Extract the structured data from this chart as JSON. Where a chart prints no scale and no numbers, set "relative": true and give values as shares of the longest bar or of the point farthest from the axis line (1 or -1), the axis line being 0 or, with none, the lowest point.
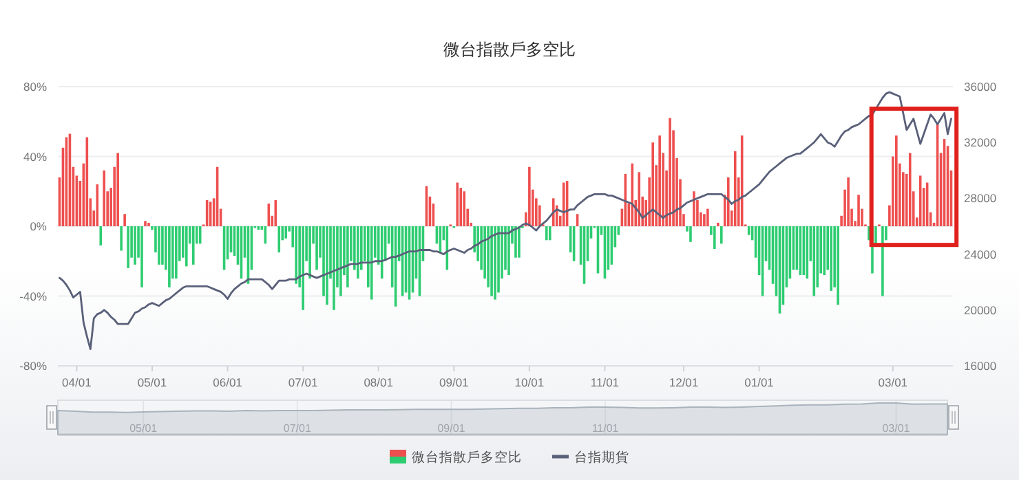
{
  "chart_data": [
    {
      "type": "bar",
      "title": "微台指散戶多空比",
      "categories": [
        null,
        null,
        null,
        null,
        null,
        "04/01",
        null,
        null,
        null,
        null,
        null,
        null,
        null,
        null,
        null,
        null,
        null,
        null,
        null,
        null,
        null,
        null,
        null,
        null,
        null,
        null,
        null,
        "05/01",
        null,
        null,
        null,
        null,
        null,
        null,
        null,
        null,
        null,
        null,
        null,
        null,
        null,
        null,
        null,
        null,
        null,
        null,
        null,
        null,
        null,
        "06/01",
        null,
        null,
        null,
        null,
        null,
        null,
        null,
        null,
        null,
        null,
        null,
        null,
        null,
        null,
        null,
        null,
        null,
        null,
        null,
        null,
        null,
        "07/01",
        null,
        null,
        null,
        null,
        null,
        null,
        null,
        null,
        null,
        null,
        null,
        null,
        null,
        null,
        null,
        null,
        null,
        null,
        null,
        null,
        null,
        "08/01",
        null,
        null,
        null,
        null,
        null,
        null,
        null,
        null,
        null,
        null,
        null,
        null,
        null,
        null,
        null,
        null,
        null,
        null,
        null,
        null,
        null,
        "09/01",
        null,
        null,
        null,
        null,
        null,
        null,
        null,
        null,
        null,
        null,
        null,
        null,
        null,
        null,
        null,
        null,
        null,
        null,
        null,
        null,
        null,
        "10/01",
        null,
        null,
        null,
        null,
        null,
        null,
        null,
        null,
        null,
        null,
        null,
        null,
        null,
        null,
        null,
        null,
        null,
        null,
        null,
        null,
        null,
        "11/01",
        null,
        null,
        null,
        null,
        null,
        null,
        null,
        null,
        null,
        null,
        null,
        null,
        null,
        null,
        null,
        null,
        null,
        null,
        null,
        null,
        null,
        null,
        "12/01",
        null,
        null,
        null,
        null,
        null,
        null,
        null,
        null,
        null,
        null,
        null,
        null,
        null,
        null,
        null,
        null,
        null,
        null,
        null,
        null,
        null,
        "01/01",
        null,
        null,
        null,
        null,
        null,
        null,
        null,
        null,
        null,
        null,
        null,
        null,
        null,
        null,
        null,
        null,
        null,
        null,
        null,
        null,
        null,
        null,
        null,
        null,
        null,
        null,
        null,
        null,
        null,
        null,
        null,
        null,
        null,
        null,
        null,
        null,
        null,
        null,
        "03/01",
        null,
        null,
        null,
        null,
        null,
        null,
        null,
        null,
        null,
        null,
        null,
        null,
        null,
        null,
        null,
        null,
        null
      ],
      "ylim": [
        -80,
        80
      ],
      "yticks": [
        {
          "value": -80,
          "label": "-80%"
        },
        {
          "value": -40,
          "label": "-40%"
        },
        {
          "value": 0,
          "label": "0%"
        },
        {
          "value": 40,
          "label": "40%"
        },
        {
          "value": 80,
          "label": "80%"
        }
      ],
      "y2lim": [
        16000,
        36000
      ],
      "y2ticks": [
        16000,
        20000,
        24000,
        28000,
        32000,
        36000
      ],
      "grid": "y",
      "legend": "bottom",
      "series": [
        {
          "name": "微台指散戶多空比",
          "values": [
            28,
            45,
            51,
            53,
            34,
            29,
            26,
            36,
            51,
            16,
            9,
            24,
            -11,
            32,
            20,
            22,
            34,
            42,
            -14,
            7,
            -24,
            -18,
            -22,
            -18,
            -35,
            3,
            2,
            -2,
            -15,
            -22,
            -22,
            -25,
            -35,
            -30,
            -30,
            -20,
            -18,
            -23,
            -10,
            -22,
            -10,
            -10,
            1,
            15,
            14,
            16,
            34,
            10,
            -25,
            -19,
            -15,
            -17,
            -22,
            -30,
            -18,
            -33,
            -25,
            -1,
            -2,
            -2,
            -10,
            13,
            6,
            15,
            -15,
            -8,
            -7,
            -3,
            -12,
            -33,
            -35,
            -48,
            -20,
            -30,
            -10,
            -25,
            -18,
            -40,
            -45,
            -30,
            -48,
            -35,
            -40,
            -28,
            -35,
            -20,
            -25,
            -30,
            -25,
            -20,
            -35,
            -42,
            -18,
            -22,
            -30,
            -20,
            -10,
            -35,
            -46,
            -20,
            -40,
            -38,
            -42,
            -38,
            -30,
            -40,
            -20,
            23,
            17,
            13,
            -10,
            -15,
            -8,
            -25,
            1,
            -1,
            25,
            22,
            20,
            10,
            2,
            -15,
            -20,
            -25,
            -30,
            -35,
            -40,
            -42,
            -38,
            -30,
            -25,
            -28,
            -10,
            -18,
            -18,
            -1,
            8,
            34,
            21,
            16,
            12,
            1,
            -8,
            -8,
            16,
            12,
            6,
            25,
            26,
            -15,
            -20,
            7,
            -22,
            -33,
            -20,
            -7,
            -1,
            -27,
            -5,
            -30,
            -25,
            -22,
            -12,
            -5,
            10,
            30,
            13,
            36,
            15,
            31,
            17,
            15,
            28,
            48,
            35,
            52,
            42,
            32,
            62,
            55,
            39,
            27,
            7,
            -3,
            -9,
            20,
            15,
            8,
            7,
            10,
            -5,
            -13,
            2,
            -10,
            18,
            28,
            9,
            43,
            28,
            52,
            1,
            -5,
            -8,
            -18,
            -28,
            -40,
            -20,
            -25,
            -33,
            -40,
            -50,
            -45,
            -35,
            -30,
            -25,
            -25,
            -28,
            -28,
            -30,
            -20,
            -40,
            -35,
            -27,
            -28,
            -25,
            -37,
            -35,
            -45,
            6,
            21,
            28,
            10,
            3,
            18,
            10,
            1,
            -8,
            -27,
            -10,
            1,
            -40,
            -8,
            12,
            40,
            52,
            36,
            31,
            30,
            42,
            20,
            5,
            29,
            22,
            25,
            8,
            2,
            59,
            42,
            50,
            46,
            32
          ],
          "colors": [
            "#ee4f4f",
            "#ee4f4f",
            "#ee4f4f",
            "#ee4f4f",
            "#ee4f4f",
            "#ee4f4f",
            "#ee4f4f",
            "#ee4f4f",
            "#ee4f4f",
            "#ee4f4f",
            "#ee4f4f",
            "#ee4f4f",
            "#2ecc71",
            "#ee4f4f",
            "#ee4f4f",
            "#ee4f4f",
            "#ee4f4f",
            "#ee4f4f",
            "#2ecc71",
            "#ee4f4f",
            "#2ecc71",
            "#2ecc71",
            "#2ecc71",
            "#2ecc71",
            "#2ecc71",
            "#ee4f4f",
            "#ee4f4f",
            "#2ecc71",
            "#2ecc71",
            "#2ecc71",
            "#2ecc71",
            "#2ecc71",
            "#2ecc71",
            "#2ecc71",
            "#2ecc71",
            "#2ecc71",
            "#2ecc71",
            "#2ecc71",
            "#2ecc71",
            "#2ecc71",
            "#2ecc71",
            "#2ecc71",
            "#ee4f4f",
            "#ee4f4f",
            "#ee4f4f",
            "#ee4f4f",
            "#ee4f4f",
            "#ee4f4f",
            "#2ecc71",
            "#2ecc71",
            "#2ecc71",
            "#2ecc71",
            "#2ecc71",
            "#2ecc71",
            "#2ecc71",
            "#2ecc71",
            "#2ecc71",
            "#2ecc71",
            "#2ecc71",
            "#2ecc71",
            "#2ecc71",
            "#ee4f4f",
            "#ee4f4f",
            "#ee4f4f",
            "#2ecc71",
            "#2ecc71",
            "#2ecc71",
            "#2ecc71",
            "#2ecc71",
            "#2ecc71",
            "#2ecc71",
            "#2ecc71",
            "#2ecc71",
            "#2ecc71",
            "#2ecc71",
            "#2ecc71",
            "#2ecc71",
            "#2ecc71",
            "#2ecc71",
            "#2ecc71",
            "#2ecc71",
            "#2ecc71",
            "#2ecc71",
            "#2ecc71",
            "#2ecc71",
            "#2ecc71",
            "#2ecc71",
            "#2ecc71",
            "#2ecc71",
            "#2ecc71",
            "#2ecc71",
            "#2ecc71",
            "#2ecc71",
            "#2ecc71",
            "#2ecc71",
            "#2ecc71",
            "#2ecc71",
            "#2ecc71",
            "#2ecc71",
            "#2ecc71",
            "#2ecc71",
            "#2ecc71",
            "#2ecc71",
            "#2ecc71",
            "#2ecc71",
            "#2ecc71",
            "#2ecc71",
            "#ee4f4f",
            "#ee4f4f",
            "#ee4f4f",
            "#2ecc71",
            "#2ecc71",
            "#2ecc71",
            "#2ecc71",
            "#ee4f4f",
            "#2ecc71",
            "#ee4f4f",
            "#ee4f4f",
            "#ee4f4f",
            "#ee4f4f",
            "#ee4f4f",
            "#2ecc71",
            "#2ecc71",
            "#2ecc71",
            "#2ecc71",
            "#2ecc71",
            "#2ecc71",
            "#2ecc71",
            "#2ecc71",
            "#2ecc71",
            "#2ecc71",
            "#2ecc71",
            "#2ecc71",
            "#2ecc71",
            "#2ecc71",
            "#2ecc71",
            "#ee4f4f",
            "#ee4f4f",
            "#ee4f4f",
            "#ee4f4f",
            "#ee4f4f",
            "#ee4f4f",
            "#2ecc71",
            "#2ecc71",
            "#ee4f4f",
            "#ee4f4f",
            "#ee4f4f",
            "#ee4f4f",
            "#ee4f4f",
            "#2ecc71",
            "#2ecc71",
            "#ee4f4f",
            "#2ecc71",
            "#2ecc71",
            "#2ecc71",
            "#2ecc71",
            "#2ecc71",
            "#2ecc71",
            "#2ecc71",
            "#2ecc71",
            "#2ecc71",
            "#2ecc71",
            "#2ecc71",
            "#2ecc71",
            "#ee4f4f",
            "#ee4f4f",
            "#ee4f4f",
            "#ee4f4f",
            "#ee4f4f",
            "#ee4f4f",
            "#ee4f4f",
            "#ee4f4f",
            "#ee4f4f",
            "#ee4f4f",
            "#ee4f4f",
            "#ee4f4f",
            "#ee4f4f",
            "#ee4f4f",
            "#ee4f4f",
            "#ee4f4f",
            "#ee4f4f",
            "#ee4f4f",
            "#ee4f4f",
            "#2ecc71",
            "#2ecc71",
            "#ee4f4f",
            "#ee4f4f",
            "#ee4f4f",
            "#ee4f4f",
            "#ee4f4f",
            "#2ecc71",
            "#2ecc71",
            "#ee4f4f",
            "#2ecc71",
            "#ee4f4f",
            "#ee4f4f",
            "#ee4f4f",
            "#ee4f4f",
            "#ee4f4f",
            "#ee4f4f",
            "#ee4f4f",
            "#2ecc71",
            "#2ecc71",
            "#2ecc71",
            "#2ecc71",
            "#2ecc71",
            "#2ecc71",
            "#2ecc71",
            "#2ecc71",
            "#2ecc71",
            "#2ecc71",
            "#2ecc71",
            "#2ecc71",
            "#2ecc71",
            "#2ecc71",
            "#2ecc71",
            "#2ecc71",
            "#2ecc71",
            "#2ecc71",
            "#2ecc71",
            "#2ecc71",
            "#2ecc71",
            "#2ecc71",
            "#2ecc71",
            "#2ecc71",
            "#2ecc71",
            "#2ecc71",
            "#2ecc71",
            "#ee4f4f",
            "#ee4f4f",
            "#ee4f4f",
            "#ee4f4f",
            "#ee4f4f",
            "#ee4f4f",
            "#ee4f4f",
            "#ee4f4f",
            "#2ecc71",
            "#2ecc71",
            "#2ecc71",
            "#ee4f4f",
            "#2ecc71",
            "#2ecc71",
            "#ee4f4f",
            "#ee4f4f",
            "#ee4f4f",
            "#ee4f4f",
            "#ee4f4f",
            "#ee4f4f",
            "#ee4f4f",
            "#ee4f4f",
            "#ee4f4f",
            "#ee4f4f",
            "#ee4f4f",
            "#ee4f4f",
            "#ee4f4f",
            "#ee4f4f",
            "#ee4f4f",
            "#ee4f4f",
            "#ee4f4f",
            "#ee4f4f",
            "#ee4f4f"
          ]
        },
        {
          "name": "台指期貨",
          "type": "line",
          "axis": "y2",
          "color": "#5a6079",
          "values": [
            22300,
            22100,
            21800,
            21400,
            20900,
            21100,
            21300,
            19100,
            18100,
            17200,
            19400,
            19700,
            19800,
            20000,
            19800,
            19500,
            19300,
            19000,
            19000,
            19000,
            19000,
            19400,
            19800,
            19900,
            20100,
            20200,
            20400,
            20500,
            20400,
            20300,
            20500,
            20700,
            20800,
            21000,
            21200,
            21400,
            21600,
            21700,
            21700,
            21700,
            21700,
            21700,
            21700,
            21700,
            21600,
            21500,
            21400,
            21300,
            21100,
            20800,
            21200,
            21500,
            21700,
            21900,
            22000,
            22200,
            22200,
            22200,
            22200,
            22200,
            22000,
            21800,
            21500,
            21800,
            22100,
            22100,
            22100,
            22200,
            22200,
            22200,
            22400,
            22500,
            22600,
            22500,
            22400,
            22300,
            22400,
            22500,
            22600,
            22700,
            22800,
            22900,
            23000,
            23100,
            23200,
            23300,
            23300,
            23300,
            23400,
            23400,
            23400,
            23400,
            23500,
            23500,
            23500,
            23600,
            23700,
            23800,
            23800,
            23900,
            24000,
            24100,
            24200,
            24200,
            24200,
            24300,
            24300,
            24300,
            24300,
            24200,
            24200,
            24100,
            24000,
            24200,
            24300,
            24400,
            24300,
            24200,
            24100,
            24300,
            24400,
            24600,
            24700,
            24900,
            25000,
            25100,
            25300,
            25400,
            25500,
            25500,
            25500,
            25500,
            25700,
            25800,
            25900,
            26100,
            26200,
            26100,
            25900,
            25700,
            26000,
            26200,
            26400,
            26700,
            27000,
            27200,
            27100,
            27000,
            27100,
            27200,
            27200,
            27500,
            27700,
            27900,
            28100,
            28200,
            28300,
            28300,
            28300,
            28300,
            28200,
            28200,
            28100,
            28000,
            27900,
            27800,
            27700,
            27600,
            27300,
            27000,
            26600,
            26800,
            27000,
            27200,
            27000,
            26800,
            26600,
            26800,
            26900,
            27000,
            27200,
            27300,
            27500,
            27700,
            27800,
            27900,
            28000,
            28100,
            28200,
            28300,
            28300,
            28300,
            28300,
            28300,
            28100,
            27900,
            27600,
            27800,
            27900,
            28100,
            28200,
            28400,
            28600,
            28800,
            29000,
            29300,
            29600,
            29900,
            30100,
            30300,
            30500,
            30700,
            30900,
            31000,
            31100,
            31200,
            31200,
            31400,
            31600,
            31800,
            32000,
            32300,
            32600,
            32300,
            32000,
            31900,
            31700,
            32100,
            32500,
            32800,
            32900,
            33100,
            33200,
            33300,
            33500,
            33700,
            33900,
            34000,
            34400,
            34800,
            35200,
            35500,
            35600,
            35500,
            35400,
            35300,
            34100,
            32900,
            33300,
            33700,
            32800,
            31900,
            32600,
            33300,
            34000,
            33700,
            33300,
            33700,
            34100,
            32600,
            33700
          ]
        }
      ]
    },
    {
      "type": "area",
      "relative": true,
      "tick_labels": "x",
      "grid": "x",
      "categories": [
        null,
        null,
        null,
        null,
        null,
        "05/01",
        null,
        null,
        null,
        null,
        null,
        null,
        null,
        null,
        "07/01",
        null,
        null,
        null,
        null,
        null,
        null,
        null,
        null,
        "09/01",
        null,
        null,
        null,
        null,
        null,
        null,
        null,
        null,
        "11/01",
        null,
        null,
        null,
        null,
        null,
        null,
        null,
        null,
        null,
        null,
        null,
        null,
        null,
        null,
        null,
        null,
        "03/01",
        null,
        null,
        null
      ],
      "series": [
        {
          "color": "#a9b3bc",
          "values": [
            0.76,
            0.74,
            0.71,
            0.71,
            0.7,
            0.72,
            0.73,
            0.74,
            0.75,
            0.75,
            0.74,
            0.76,
            0.75,
            0.76,
            0.76,
            0.76,
            0.77,
            0.78,
            0.78,
            0.78,
            0.79,
            0.8,
            0.8,
            0.8,
            0.8,
            0.81,
            0.82,
            0.83,
            0.83,
            0.85,
            0.85,
            0.87,
            0.87,
            0.86,
            0.84,
            0.84,
            0.85,
            0.87,
            0.87,
            0.86,
            0.87,
            0.89,
            0.91,
            0.93,
            0.94,
            0.94,
            0.96,
            0.97,
            1,
            1,
            0.96,
            0.97,
            0.97
          ]
        }
      ]
    }
  ]
}
